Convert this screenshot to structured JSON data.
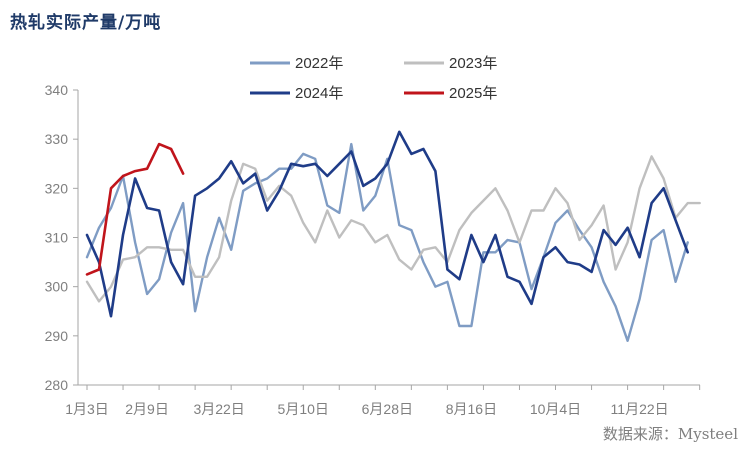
{
  "title": "热轧实际产量/万吨",
  "source": "数据来源：Mysteel",
  "chart_data": {
    "type": "line",
    "title": "热轧实际产量/万吨",
    "unit": "万吨",
    "xlabel": "",
    "ylabel": "",
    "ylim": [
      280,
      340
    ],
    "yticks": [
      280,
      290,
      300,
      310,
      320,
      330,
      340
    ],
    "x_tick_labels": [
      "1月3日",
      "2月9日",
      "3月22日",
      "5月10日",
      "6月28日",
      "8月16日",
      "10月4日",
      "11月22日"
    ],
    "x_tick_index": [
      0,
      5,
      11,
      18,
      25,
      32,
      39,
      46
    ],
    "grid": false,
    "legend_position": "top",
    "series": [
      {
        "name": "2022年",
        "color": "#7F9CC4",
        "values": [
          306,
          312,
          316,
          322.5,
          309,
          298.5,
          301.5,
          311,
          317,
          295,
          306,
          314,
          307.5,
          319.5,
          321,
          322,
          324,
          324,
          327,
          326,
          316.5,
          315,
          329,
          315.5,
          318.5,
          326,
          312.5,
          311.5,
          305,
          300,
          301,
          292,
          292,
          307,
          307,
          309.5,
          309,
          299.5,
          306,
          313,
          315.5,
          311.5,
          308,
          301,
          296,
          289,
          297.5,
          309.5,
          311.5,
          301,
          309
        ]
      },
      {
        "name": "2023年",
        "color": "#BFBFBF",
        "values": [
          301,
          297,
          300,
          305.5,
          306,
          308,
          308,
          307.5,
          307.5,
          302,
          302,
          306,
          317.5,
          325,
          324,
          317.5,
          320.5,
          318.5,
          313,
          309,
          315.5,
          310,
          313.5,
          312.5,
          309,
          310.5,
          305.5,
          303.5,
          307.5,
          308,
          305,
          311.5,
          315,
          317.5,
          320,
          315.5,
          309,
          315.5,
          315.5,
          320,
          317,
          309.5,
          312.5,
          316.5,
          303.5,
          309,
          320,
          326.5,
          322,
          314,
          317,
          317
        ]
      },
      {
        "name": "2024年",
        "color": "#1F3C88",
        "values": [
          310.5,
          305,
          294,
          310.5,
          322,
          316,
          315.5,
          305,
          300.5,
          318.5,
          320,
          322,
          325.5,
          321,
          323,
          315.5,
          319.5,
          325,
          324.5,
          325,
          322.5,
          325,
          327.5,
          320.5,
          322,
          325,
          331.5,
          327,
          328,
          323.5,
          303.5,
          301.5,
          310.5,
          305,
          310.5,
          302,
          301,
          296.5,
          306,
          308,
          305,
          304.5,
          303,
          311.5,
          308.5,
          312,
          306,
          317,
          320,
          313.5,
          307
        ]
      },
      {
        "name": "2025年",
        "color": "#C0141B",
        "values": [
          302.5,
          303.5,
          320,
          322.5,
          323.5,
          324,
          329,
          328,
          323
        ]
      }
    ]
  }
}
